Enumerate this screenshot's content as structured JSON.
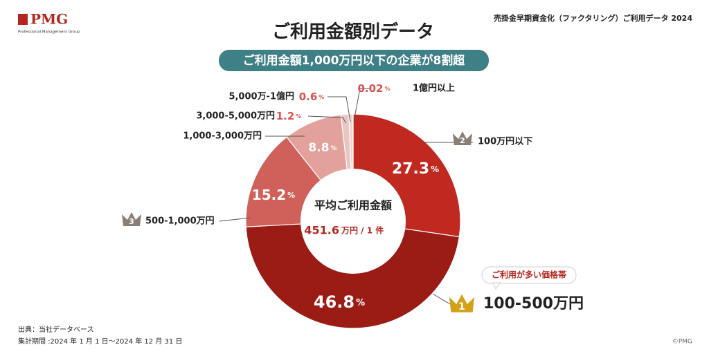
{
  "header": {
    "logo": "PMG",
    "logo_sub": "Professional Management Group",
    "report": "売掛金早期資金化（ファクタリング）ご利用データ 2024"
  },
  "chart_data": {
    "type": "pie",
    "title": "ご利用金額別データ",
    "subtitle": "ご利用金額1,000万円以下の企業が8割超",
    "categories": [
      "100万円以下",
      "100-500万円",
      "500-1,000万円",
      "1,000-3,000万円",
      "3,000-5,000万円",
      "5,000万-1億円",
      "1億円以上"
    ],
    "values": [
      27.3,
      46.8,
      15.2,
      8.8,
      1.2,
      0.6,
      0.02
    ],
    "unit": "%",
    "colors": [
      "#c0291f",
      "#9b1b15",
      "#d0605a",
      "#e3a19c",
      "#eac6c3",
      "#efd3d1",
      "#f5e3e2"
    ],
    "ranks": [
      2,
      1,
      3,
      null,
      null,
      null,
      null
    ],
    "callout": "ご利用が多い価格帯",
    "center_title": "平均ご利用金額",
    "center_value": 451.6,
    "center_unit": "万円 / 1 件"
  },
  "footer": {
    "source": "出典：当社データベース",
    "period": "集計期間 :2024 年 1 月 1 日～2024 年 12 月 31 日",
    "copyright": "©PMG"
  }
}
